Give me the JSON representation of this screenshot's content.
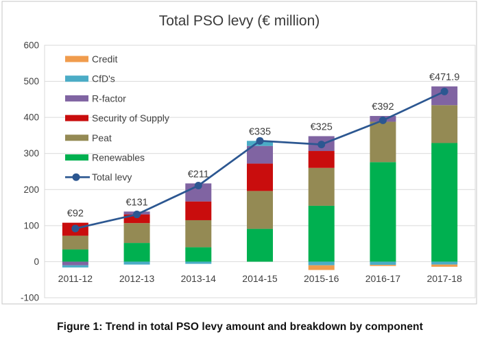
{
  "figure": {
    "caption": "Figure 1: Trend in total PSO levy amount and breakdown by component"
  },
  "chart_data": {
    "type": "bar",
    "subtype": "stacked-bars-with-line-overlay",
    "title": "Total PSO levy (€ million)",
    "categories": [
      "2011-12",
      "2012-13",
      "2013-14",
      "2014-15",
      "2015-16",
      "2016-17",
      "2017-18"
    ],
    "series": [
      {
        "name": "Renewables",
        "color": "#00B050",
        "values": [
          34,
          52,
          40,
          91,
          155,
          276,
          329
        ]
      },
      {
        "name": "Peat",
        "color": "#948A54",
        "values": [
          38,
          55,
          75,
          105,
          105,
          112,
          105
        ]
      },
      {
        "name": "Security of Supply",
        "color": "#C90D0D",
        "values": [
          36,
          24,
          52,
          76,
          47,
          0,
          0
        ]
      },
      {
        "name": "R-factor",
        "color": "#8064A2",
        "values": [
          -10,
          8,
          50,
          49,
          41,
          16,
          52
        ]
      },
      {
        "name": "CfD's",
        "color": "#4BACC6",
        "values": [
          -6,
          -8,
          -6,
          14,
          -10,
          -9,
          -8
        ]
      },
      {
        "name": "Credit",
        "color": "#F09C4D",
        "values": [
          0,
          0,
          0,
          0,
          -13,
          -3,
          -6.1
        ]
      }
    ],
    "line_series": {
      "name": "Total levy",
      "color": "#2C5791",
      "values": [
        92,
        131,
        211,
        335,
        325,
        392,
        471.9
      ]
    },
    "point_labels": [
      "€92",
      "€131",
      "€211",
      "€335",
      "€325",
      "€392",
      "€471.9"
    ],
    "ylim": [
      -100,
      600
    ],
    "ytick_step": 100,
    "yticks": [
      "600",
      "500",
      "400",
      "300",
      "200",
      "100",
      "0",
      "-100"
    ],
    "grid": true,
    "legend_position": "upper-left-inside",
    "legend_order": [
      "Credit",
      "CfD's",
      "R-factor",
      "Security of Supply",
      "Peat",
      "Renewables",
      "Total levy"
    ],
    "colors": {
      "gridline": "#D9D9D9",
      "plot_border": "#D9D9D9",
      "chart_border": "#C6C6C6",
      "axis_text": "#3F3F3F",
      "title_text": "#3A3A3A"
    }
  }
}
